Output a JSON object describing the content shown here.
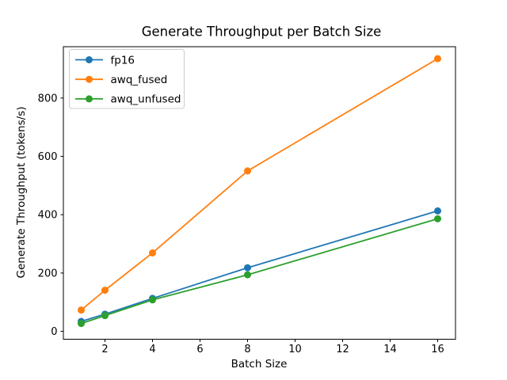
{
  "title": "Generate Throughput per Batch Size",
  "chart_data": {
    "type": "line",
    "title": "Generate Throughput per Batch Size",
    "xlabel": "Batch Size",
    "ylabel": "Generate Throughput (tokens/s)",
    "x": [
      1,
      2,
      4,
      8,
      16
    ],
    "series": [
      {
        "name": "fp16",
        "color": "#1f77b4",
        "values": [
          34,
          59,
          113,
          218,
          413
        ]
      },
      {
        "name": "awq_fused",
        "color": "#ff7f0e",
        "values": [
          73,
          141,
          269,
          550,
          935
        ]
      },
      {
        "name": "awq_unfused",
        "color": "#2ca02c",
        "values": [
          27,
          54,
          108,
          194,
          386
        ]
      }
    ],
    "xticks": [
      2,
      4,
      6,
      8,
      10,
      12,
      14,
      16
    ],
    "yticks": [
      0,
      200,
      400,
      600,
      800
    ],
    "xlim": [
      0.25,
      16.75
    ],
    "ylim": [
      -27,
      976
    ],
    "legend_position": "upper left",
    "grid": false,
    "marker": "o",
    "axis_color": "#000000",
    "legend_border_color": "#cccccc",
    "background_color": "#ffffff"
  }
}
